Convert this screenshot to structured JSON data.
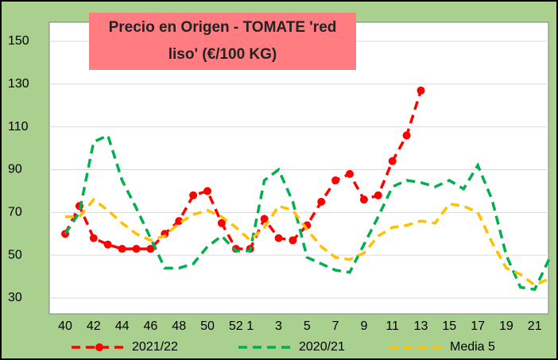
{
  "chart_data": {
    "type": "line",
    "title": "Precio en Origen - TOMATE 'red liso' (€/100 KG)",
    "categories": [
      "40",
      null,
      "42",
      null,
      "44",
      null,
      "46",
      null,
      "48",
      null,
      "50",
      null,
      "52",
      "1",
      null,
      "3",
      null,
      "5",
      null,
      "7",
      null,
      "9",
      null,
      "11",
      null,
      "13",
      null,
      "15",
      null,
      "17",
      null,
      "19",
      null,
      "21",
      null
    ],
    "series": [
      {
        "name": "2021/22",
        "color": "#ff0000",
        "marker": true,
        "values": [
          60,
          73,
          58,
          55,
          53,
          53,
          53,
          60,
          66,
          78,
          80,
          65,
          53,
          53,
          67,
          58,
          57,
          64,
          75,
          85,
          88,
          76,
          78,
          94,
          106,
          127,
          null,
          null,
          null,
          null,
          null,
          null,
          null,
          null,
          null
        ]
      },
      {
        "name": "2020/21",
        "color": "#00b050",
        "marker": false,
        "values": [
          60,
          70,
          103,
          106,
          85,
          72,
          58,
          44,
          44,
          46,
          54,
          59,
          52,
          52,
          85,
          90,
          75,
          49,
          46,
          43,
          42,
          55,
          68,
          82,
          85,
          84,
          82,
          85,
          81,
          92,
          76,
          50,
          35,
          34,
          48
        ]
      },
      {
        "name": "Media 5",
        "color": "#ffc000",
        "marker": false,
        "values": [
          68,
          68,
          76,
          71,
          65,
          60,
          57,
          59,
          65,
          69,
          71,
          68,
          63,
          57,
          63,
          73,
          71,
          62,
          54,
          49,
          48,
          51,
          59,
          63,
          64,
          66,
          65,
          74,
          73,
          70,
          56,
          44,
          41,
          36,
          39
        ]
      }
    ],
    "ylim": [
      30,
      150
    ],
    "yticks": [
      30,
      50,
      70,
      90,
      110,
      130,
      150
    ],
    "grid": true,
    "legend": "bottom"
  }
}
